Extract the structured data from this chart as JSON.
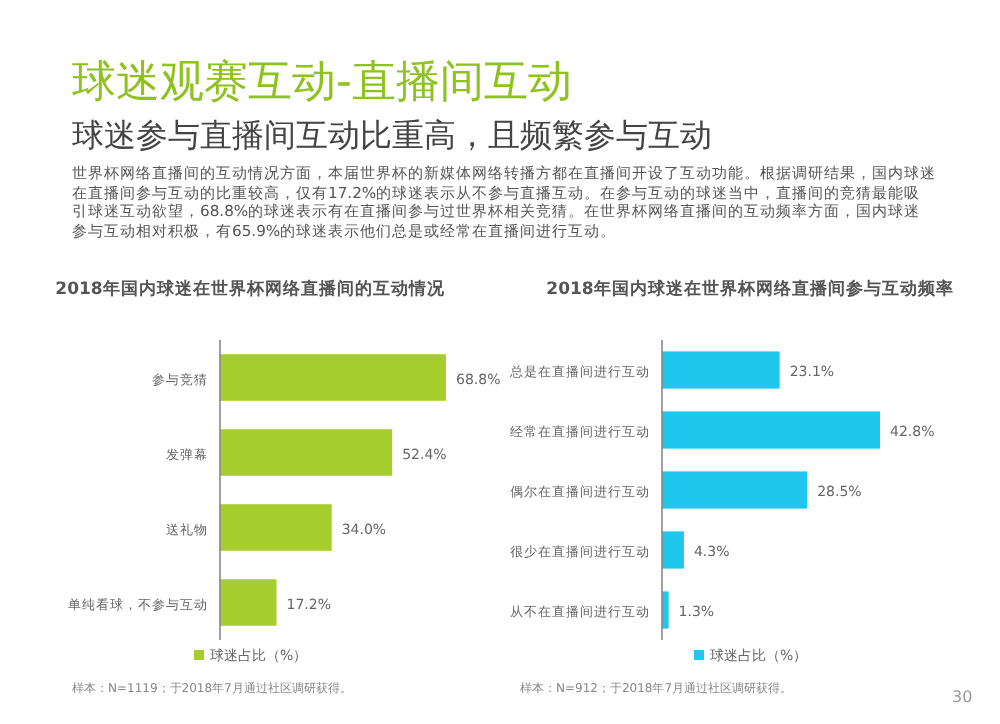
{
  "chart_data": [
    {
      "type": "other",
      "title": "球迷观赛互动-直播间互动",
      "subtitle": "球迷参与直播间互动比重高，且频繁参与互动",
      "annotations": [
        "世界杯网络直播间的互动情况方面，本届世界杯的新媒体网络转播方都在直播间开设了互动功能。根据调研结果，国内球迷在直播间参与互动的比重较高，仅有17.2%的球迷表示从不参与直播互动。在参与互动的球迷当中，直播间的竞猜最能吸引球迷互动欲望，68.8%的球迷表示有在直播间参与过世界杯相关竞猜。在世界杯网络直播间的互动频率方面，国内球迷参与互动相对积极，有65.9%的球迷表示他们总是或经常在直播间进行互动。",
        "30"
      ]
    },
    {
      "type": "bar",
      "orientation": "horizontal",
      "title": "2018年国内球迷在世界杯网络直播间的互动情况",
      "categories": [
        "参与竞猜",
        "发弹幕",
        "送礼物",
        "单纯看球，不参与互动"
      ],
      "series": [
        {
          "name": "球迷占比（%）",
          "color": "#a5cd2d",
          "values": [
            68.8,
            52.4,
            34.0,
            17.2
          ],
          "value_labels": [
            "68.8%",
            "52.4%",
            "34.0%",
            "17.2%"
          ]
        }
      ],
      "legend": "bottom",
      "annotations": [
        "样本：N=1119；于2018年7月通过社区调研获得。"
      ]
    },
    {
      "type": "bar",
      "orientation": "horizontal",
      "title": "2018年国内球迷在世界杯网络直播间参与互动频率",
      "categories": [
        "总是在直播间进行互动",
        "经常在直播间进行互动",
        "偶尔在直播间进行互动",
        "很少在直播间进行互动",
        "从不在直播间进行互动"
      ],
      "series": [
        {
          "name": "球迷占比（%）",
          "color": "#1fc6ee",
          "values": [
            23.1,
            42.8,
            28.5,
            4.3,
            1.3
          ],
          "value_labels": [
            "23.1%",
            "42.8%",
            "28.5%",
            "4.3%",
            "1.3%"
          ]
        }
      ],
      "legend": "bottom",
      "annotations": [
        "样本：N=912；于2018年7月通过社区调研获得。"
      ]
    }
  ]
}
